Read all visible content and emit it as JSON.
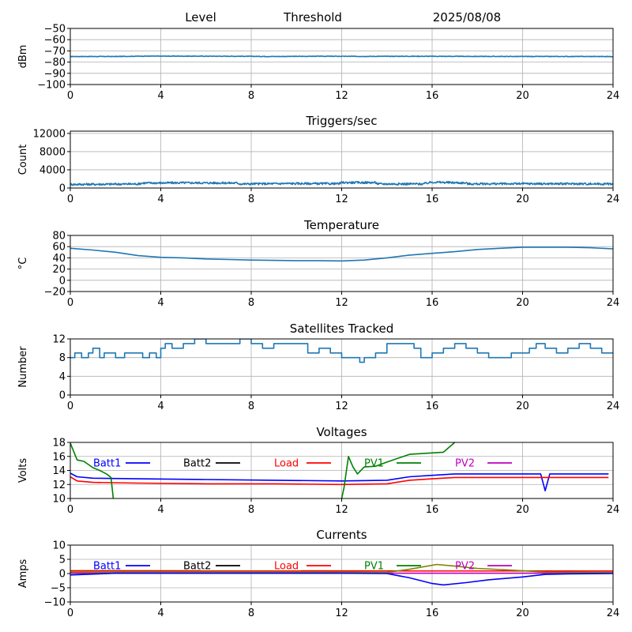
{
  "header": {
    "level_label": "Level",
    "threshold_label": "Threshold",
    "date_label": "2025/08/08"
  },
  "chart_data": [
    {
      "id": "level",
      "type": "line",
      "title": "",
      "ylabel": "dBm",
      "xlim": [
        0,
        24
      ],
      "ylim": [
        -100,
        -50
      ],
      "xticks": [
        "0",
        "4",
        "8",
        "12",
        "16",
        "20",
        "24"
      ],
      "yticks": [
        "−50",
        "−60",
        "−70",
        "−80",
        "−90",
        "−100"
      ],
      "ytick_values": [
        -50,
        -60,
        -70,
        -80,
        -90,
        -100
      ],
      "grid": true,
      "series": [
        {
          "color": "#1f77b4",
          "points": [
            [
              0,
              -75
            ],
            [
              2,
              -75
            ],
            [
              3.2,
              -74.7
            ],
            [
              5,
              -74.7
            ],
            [
              7.5,
              -74.8
            ],
            [
              9,
              -75
            ],
            [
              11,
              -74.8
            ],
            [
              13,
              -74.9
            ],
            [
              15,
              -74.8
            ],
            [
              17.5,
              -74.9
            ],
            [
              20,
              -75
            ],
            [
              24,
              -75
            ]
          ],
          "noise": 0.5
        }
      ]
    },
    {
      "id": "triggers",
      "type": "line",
      "title": "Triggers/sec",
      "ylabel": "Count",
      "xlim": [
        0,
        24
      ],
      "ylim": [
        0,
        12500
      ],
      "xticks": [
        "0",
        "4",
        "8",
        "12",
        "16",
        "20",
        "24"
      ],
      "yticks": [
        "12000",
        "8000",
        "4000",
        "0"
      ],
      "ytick_values": [
        12000,
        8000,
        4000,
        0
      ],
      "grid": true,
      "series": [
        {
          "color": "#1f77b4",
          "points": [
            [
              0,
              800
            ],
            [
              2,
              850
            ],
            [
              3,
              900
            ],
            [
              3.2,
              1100
            ],
            [
              5,
              1150
            ],
            [
              7.4,
              1100
            ],
            [
              7.5,
              900
            ],
            [
              9,
              950
            ],
            [
              9.5,
              1000
            ],
            [
              11.9,
              950
            ],
            [
              12,
              1200
            ],
            [
              13.5,
              1200
            ],
            [
              13.6,
              900
            ],
            [
              15.6,
              900
            ],
            [
              16,
              1300
            ],
            [
              17.5,
              1100
            ],
            [
              17.6,
              900
            ],
            [
              20,
              950
            ],
            [
              24,
              900
            ]
          ],
          "noise": 450
        }
      ]
    },
    {
      "id": "temperature",
      "type": "line",
      "title": "Temperature",
      "ylabel": "°C",
      "xlim": [
        0,
        24
      ],
      "ylim": [
        -20,
        80
      ],
      "xticks": [
        "0",
        "4",
        "8",
        "12",
        "16",
        "20",
        "24"
      ],
      "yticks": [
        "80",
        "60",
        "40",
        "20",
        "0",
        "−20"
      ],
      "ytick_values": [
        80,
        60,
        40,
        20,
        0,
        -20
      ],
      "grid": true,
      "series": [
        {
          "color": "#1f77b4",
          "points": [
            [
              0,
              57
            ],
            [
              1,
              54
            ],
            [
              2,
              50
            ],
            [
              3,
              44
            ],
            [
              4,
              41
            ],
            [
              5,
              40
            ],
            [
              6,
              38
            ],
            [
              7,
              37
            ],
            [
              8,
              36
            ],
            [
              10,
              35
            ],
            [
              11,
              35
            ],
            [
              12,
              34.5
            ],
            [
              13,
              36
            ],
            [
              14,
              40
            ],
            [
              15,
              45
            ],
            [
              16,
              48
            ],
            [
              17,
              51
            ],
            [
              18,
              55
            ],
            [
              19,
              57
            ],
            [
              20,
              59
            ],
            [
              22,
              59
            ],
            [
              23,
              58
            ],
            [
              24,
              56
            ]
          ],
          "noise": 0
        }
      ]
    },
    {
      "id": "satellites",
      "type": "line",
      "title": "Satellites Tracked",
      "ylabel": "Number",
      "xlim": [
        0,
        24
      ],
      "ylim": [
        0,
        12
      ],
      "xticks": [
        "0",
        "4",
        "8",
        "12",
        "16",
        "20",
        "24"
      ],
      "yticks": [
        "12",
        "8",
        "4",
        "0"
      ],
      "ytick_values": [
        12,
        8,
        4,
        0
      ],
      "grid": true,
      "step": true,
      "series": [
        {
          "color": "#1f77b4",
          "points": [
            [
              0,
              8
            ],
            [
              0.2,
              9
            ],
            [
              0.5,
              8
            ],
            [
              0.8,
              9
            ],
            [
              1,
              10
            ],
            [
              1.3,
              8
            ],
            [
              1.5,
              9
            ],
            [
              1.8,
              9
            ],
            [
              2,
              8
            ],
            [
              2.4,
              9
            ],
            [
              3,
              9
            ],
            [
              3.2,
              8
            ],
            [
              3.5,
              9
            ],
            [
              3.8,
              8
            ],
            [
              4,
              10
            ],
            [
              4.2,
              11
            ],
            [
              4.5,
              10
            ],
            [
              5,
              11
            ],
            [
              5.5,
              12
            ],
            [
              6,
              11
            ],
            [
              7,
              11
            ],
            [
              7.5,
              12
            ],
            [
              8,
              11
            ],
            [
              8.5,
              10
            ],
            [
              9,
              11
            ],
            [
              10,
              11
            ],
            [
              10.5,
              9
            ],
            [
              11,
              10
            ],
            [
              11.5,
              9
            ],
            [
              12,
              8
            ],
            [
              12.5,
              8
            ],
            [
              12.8,
              7
            ],
            [
              13,
              8
            ],
            [
              13.5,
              9
            ],
            [
              14,
              11
            ],
            [
              15,
              11
            ],
            [
              15.2,
              10
            ],
            [
              15.5,
              8
            ],
            [
              16,
              9
            ],
            [
              16.5,
              10
            ],
            [
              17,
              11
            ],
            [
              17.5,
              10
            ],
            [
              18,
              9
            ],
            [
              18.5,
              8
            ],
            [
              19,
              8
            ],
            [
              19.5,
              9
            ],
            [
              20,
              9
            ],
            [
              20.3,
              10
            ],
            [
              20.6,
              11
            ],
            [
              21,
              10
            ],
            [
              21.5,
              9
            ],
            [
              22,
              10
            ],
            [
              22.5,
              11
            ],
            [
              23,
              10
            ],
            [
              23.5,
              9
            ],
            [
              24,
              9
            ]
          ],
          "noise": 0
        }
      ]
    },
    {
      "id": "voltages",
      "type": "line",
      "title": "Voltages",
      "ylabel": "Volts",
      "xlim": [
        0,
        24
      ],
      "ylim": [
        10,
        18
      ],
      "xticks": [
        "0",
        "4",
        "8",
        "12",
        "16",
        "20",
        "24"
      ],
      "yticks": [
        "18",
        "16",
        "14",
        "12",
        "10"
      ],
      "ytick_values": [
        18,
        16,
        14,
        12,
        10
      ],
      "grid": true,
      "legend": {
        "placement": "top",
        "items": [
          {
            "label": "Batt1",
            "color": "#0000ff"
          },
          {
            "label": "Batt2",
            "color": "#000000"
          },
          {
            "label": "Load",
            "color": "#ff0000"
          },
          {
            "label": "PV1",
            "color": "#008000"
          },
          {
            "label": "PV2",
            "color": "#bf00bf"
          }
        ]
      },
      "series": [
        {
          "name": "Batt1",
          "color": "#0000ff",
          "points": [
            [
              0,
              13.6
            ],
            [
              0.3,
              13.1
            ],
            [
              1,
              12.9
            ],
            [
              3,
              12.8
            ],
            [
              6,
              12.7
            ],
            [
              9,
              12.6
            ],
            [
              12,
              12.5
            ],
            [
              14,
              12.6
            ],
            [
              15,
              13.1
            ],
            [
              16,
              13.3
            ],
            [
              17,
              13.5
            ],
            [
              19,
              13.5
            ],
            [
              20,
              13.5
            ],
            [
              20.8,
              13.5
            ],
            [
              21,
              11.1
            ],
            [
              21.2,
              13.5
            ],
            [
              23,
              13.5
            ],
            [
              23.8,
              13.5
            ]
          ]
        },
        {
          "name": "Load",
          "color": "#ff0000",
          "points": [
            [
              0,
              13.1
            ],
            [
              0.3,
              12.5
            ],
            [
              1,
              12.3
            ],
            [
              3,
              12.2
            ],
            [
              6,
              12.1
            ],
            [
              9,
              12.1
            ],
            [
              12,
              12.0
            ],
            [
              14,
              12.1
            ],
            [
              15,
              12.6
            ],
            [
              16,
              12.8
            ],
            [
              17,
              13.0
            ],
            [
              20,
              13.0
            ],
            [
              23.8,
              13.0
            ]
          ]
        },
        {
          "name": "PV1",
          "color": "#008000",
          "points": [
            [
              0,
              17.9
            ],
            [
              0.3,
              15.5
            ],
            [
              0.6,
              15.3
            ],
            [
              1,
              14.4
            ],
            [
              1.3,
              14.0
            ],
            [
              1.6,
              13.5
            ],
            [
              1.8,
              13.0
            ],
            [
              1.9,
              10.0
            ]
          ]
        },
        {
          "name": "PV1",
          "color": "#008000",
          "points": [
            [
              12,
              10.0
            ],
            [
              12.1,
              11.5
            ],
            [
              12.3,
              16.0
            ],
            [
              12.5,
              14.5
            ],
            [
              12.7,
              13.5
            ],
            [
              13,
              14.5
            ],
            [
              13.5,
              14.6
            ],
            [
              14,
              15.2
            ],
            [
              15,
              16.3
            ],
            [
              16,
              16.5
            ],
            [
              16.5,
              16.6
            ],
            [
              17,
              18.0
            ]
          ]
        }
      ]
    },
    {
      "id": "currents",
      "type": "line",
      "title": "Currents",
      "ylabel": "Amps",
      "xlim": [
        0,
        24
      ],
      "ylim": [
        -10,
        10
      ],
      "xticks": [
        "0",
        "4",
        "8",
        "12",
        "16",
        "20",
        "24"
      ],
      "yticks": [
        "10",
        "5",
        "0",
        "−5",
        "−10"
      ],
      "ytick_values": [
        10,
        5,
        0,
        -5,
        -10
      ],
      "grid": true,
      "legend": {
        "placement": "top",
        "items": [
          {
            "label": "Batt1",
            "color": "#0000ff"
          },
          {
            "label": "Batt2",
            "color": "#000000"
          },
          {
            "label": "Load",
            "color": "#ff0000"
          },
          {
            "label": "PV1",
            "color": "#008000"
          },
          {
            "label": "PV2",
            "color": "#bf00bf"
          }
        ]
      },
      "series": [
        {
          "name": "PV2",
          "color": "#bf00bf",
          "points": [
            [
              0,
              0.1
            ],
            [
              24,
              0.1
            ]
          ]
        },
        {
          "name": "Load",
          "color": "#ff0000",
          "points": [
            [
              0,
              1.0
            ],
            [
              24,
              0.9
            ]
          ]
        },
        {
          "name": "PV1",
          "color": "#808000",
          "points": [
            [
              0,
              0.5
            ],
            [
              4,
              0.6
            ],
            [
              8,
              0.5
            ],
            [
              12,
              0.5
            ],
            [
              14,
              0.4
            ],
            [
              15,
              1.5
            ],
            [
              16.2,
              3.2
            ],
            [
              17,
              2.6
            ],
            [
              18,
              1.8
            ],
            [
              19.5,
              1.2
            ],
            [
              21,
              0.5
            ],
            [
              24,
              0.4
            ]
          ]
        },
        {
          "name": "Batt1",
          "color": "#0000ff",
          "points": [
            [
              0,
              -0.5
            ],
            [
              2,
              0.1
            ],
            [
              4,
              0.1
            ],
            [
              8,
              0.1
            ],
            [
              12,
              0.1
            ],
            [
              14,
              0
            ],
            [
              15,
              -1.5
            ],
            [
              16,
              -3.5
            ],
            [
              16.5,
              -4.0
            ],
            [
              17.5,
              -3.2
            ],
            [
              18.5,
              -2.2
            ],
            [
              20,
              -1.2
            ],
            [
              21,
              -0.3
            ],
            [
              22,
              -0.1
            ],
            [
              24,
              0
            ]
          ]
        }
      ]
    }
  ]
}
